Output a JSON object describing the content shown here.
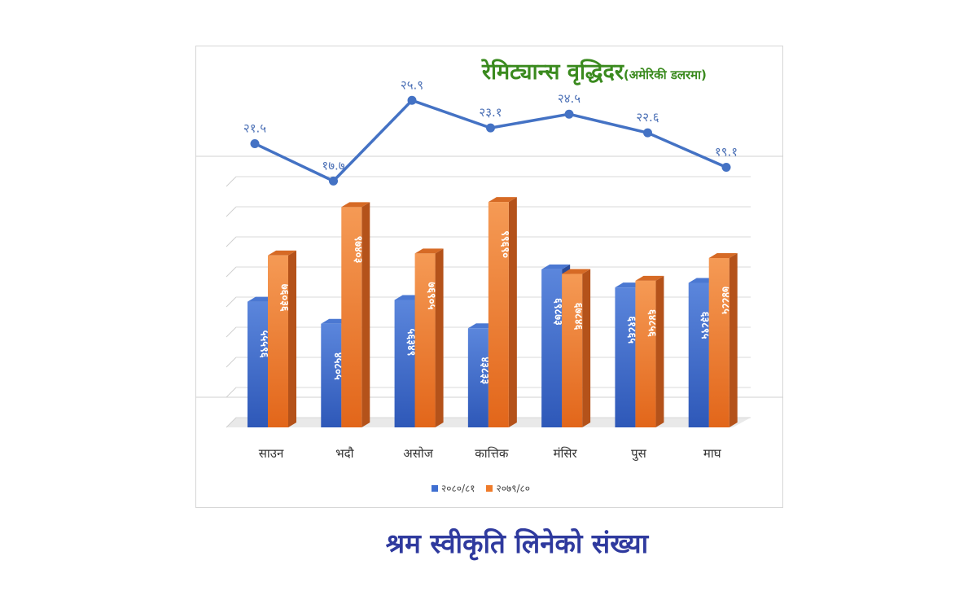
{
  "chart_data": [
    {
      "type": "bar",
      "title": "श्रम स्वीकृति लिनेको संख्या",
      "categories": [
        "साउन",
        "भदौ",
        "असोज",
        "कात्तिक",
        "मंसिर",
        "पुस",
        "माघ"
      ],
      "series": [
        {
          "name": "२०८०/८१",
          "values": [
            55596,
            45805,
            56349,
            43833,
            69873,
            61865,
            63895
          ],
          "labels": [
            "५५५९६",
            "४५८०५",
            "५६३४९",
            "४३८३३",
            "६९८७३",
            "६१८६५",
            "६३८९५"
          ],
          "color": "#3f6fd1"
        },
        {
          "name": "२०७९/८०",
          "values": [
            76036,
            97403,
            76905,
            99690,
            67846,
            64856,
            74885
          ],
          "labels": [
            "७६०३६",
            "९७४०३",
            "७६९०५",
            "९९६९०",
            "६७८४६",
            "६४८५६",
            "७४८८५"
          ],
          "color": "#ef7b2a"
        }
      ]
    },
    {
      "type": "line",
      "title": "रेमिट्यान्स वृद्धिदर",
      "subtitle": "(अमेरिकी डलरमा)",
      "categories": [
        "साउन",
        "भदौ",
        "असोज",
        "कात्तिक",
        "मंसिर",
        "पुस",
        "माघ"
      ],
      "values": [
        21.5,
        17.7,
        25.9,
        23.1,
        24.5,
        22.6,
        19.1
      ],
      "labels": [
        "२१.५",
        "१७.७",
        "२५.९",
        "२३.१",
        "२४.५",
        "२२.६",
        "१९.१"
      ],
      "color": "#4472c4"
    }
  ]
}
